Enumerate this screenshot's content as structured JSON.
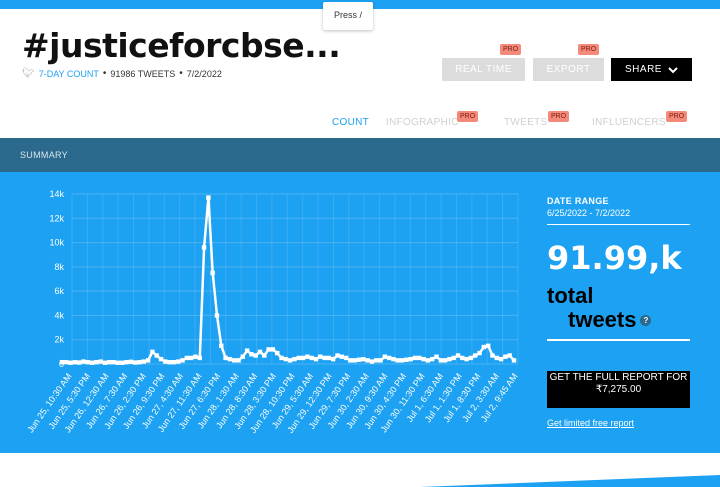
{
  "header": {
    "press_label": "Press /",
    "title": "#justiceforcbse...",
    "meta_link": "7-DAY COUNT",
    "tweets_count": "91986 TWEETS",
    "date": "7/2/2022"
  },
  "actions": {
    "realtime": "REAL TIME",
    "export": "EXPORT",
    "share": "SHARE",
    "pro": "PRO"
  },
  "tabs": [
    "COUNT",
    "INFOGRAPHIC",
    "TWEETS",
    "INFLUENCERS"
  ],
  "summary_label": "SUMMARY",
  "side": {
    "date_range_label": "DATE RANGE",
    "date_range_value": "6/25/2022 - 7/2/2022",
    "total_value": "91.99,k",
    "total_word1": "total",
    "total_word2": "tweets",
    "help": "?",
    "cta": "GET THE FULL REPORT FOR ₹7,275.00",
    "free_link": "Get limited free report"
  },
  "colors": {
    "brand_blue": "#1da1f2",
    "summary_bar": "#2b6a8c",
    "pro_badge": "#f48a7a"
  },
  "chart_data": {
    "type": "line",
    "ylim": [
      0,
      14000
    ],
    "y_ticks": [
      "0",
      "2k",
      "4k",
      "6k",
      "8k",
      "10k",
      "12k",
      "14k"
    ],
    "x_tick_labels": [
      "Jun 25, 10:30 AM",
      "Jun 25, 5:30 PM",
      "Jun 26, 12:30 AM",
      "Jun 26, 7:30 AM",
      "Jun 26, 2:30 PM",
      "Jun 26, 9:30 PM",
      "Jun 27, 4:30 AM",
      "Jun 27, 11:30 AM",
      "Jun 27, 6:30 PM",
      "Jun 28, 1:30 AM",
      "Jun 28, 8:30 AM",
      "Jun 28, 3:30 PM",
      "Jun 28, 10:30 PM",
      "Jun 29, 5:30 AM",
      "Jun 29, 12:30 PM",
      "Jun 29, 7:30 PM",
      "Jun 30, 2:30 AM",
      "Jun 30, 9:30 AM",
      "Jun 30, 4:30 PM",
      "Jun 30, 11:30 PM",
      "Jul 1, 6:30 AM",
      "Jul 1, 1:30 PM",
      "Jul 1, 8:30 PM",
      "Jul 2, 3:30 AM",
      "Jul 2, 9:45 AM"
    ],
    "values": [
      150,
      150,
      100,
      150,
      120,
      200,
      150,
      100,
      150,
      200,
      100,
      150,
      150,
      100,
      100,
      150,
      180,
      120,
      150,
      200,
      300,
      1000,
      700,
      400,
      200,
      150,
      150,
      200,
      300,
      500,
      500,
      600,
      500,
      9600,
      13700,
      7500,
      4000,
      1500,
      500,
      400,
      300,
      300,
      600,
      1100,
      800,
      700,
      1000,
      700,
      1200,
      1200,
      900,
      500,
      400,
      300,
      400,
      500,
      500,
      600,
      500,
      400,
      600,
      500,
      500,
      400,
      700,
      600,
      500,
      300,
      300,
      350,
      400,
      300,
      200,
      300,
      300,
      600,
      500,
      400,
      300,
      300,
      350,
      400,
      500,
      500,
      400,
      300,
      400,
      600,
      300,
      300,
      400,
      500,
      700,
      500,
      400,
      500,
      700,
      900,
      1400,
      1500,
      700,
      500,
      400,
      600,
      700,
      300
    ]
  }
}
